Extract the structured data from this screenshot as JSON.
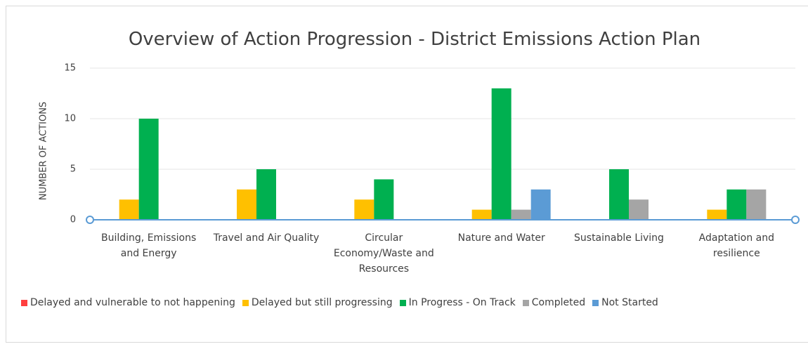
{
  "chart_data": {
    "type": "bar",
    "title": "Overview of Action Progression - District Emissions Action Plan",
    "y_label": "NUMBER OF ACTIONS",
    "categories": [
      "Building, Emissions and Energy",
      "Travel and Air Quality",
      "Circular Economy/Waste and Resources",
      "Nature and Water",
      "Sustainable Living",
      "Adaptation and resilience"
    ],
    "series": [
      {
        "name": "Delayed and vulnerable to not happening",
        "color": "#ff3f3f",
        "values": [
          0,
          0,
          0,
          0,
          0,
          0
        ]
      },
      {
        "name": "Delayed but still progressing",
        "color": "#ffc000",
        "values": [
          2,
          3,
          2,
          1,
          0,
          1
        ]
      },
      {
        "name": "In Progress - On Track",
        "color": "#00b050",
        "values": [
          10,
          5,
          4,
          13,
          5,
          3
        ]
      },
      {
        "name": "Completed",
        "color": "#a5a5a5",
        "values": [
          0,
          0,
          0,
          1,
          2,
          3
        ]
      },
      {
        "name": "Not Started",
        "color": "#5b9bd5",
        "values": [
          0,
          0,
          0,
          3,
          0,
          0
        ]
      }
    ],
    "ylim": [
      0,
      15
    ],
    "yticks": [
      0,
      5,
      10,
      15
    ],
    "grid": true,
    "legend": "bottom"
  }
}
